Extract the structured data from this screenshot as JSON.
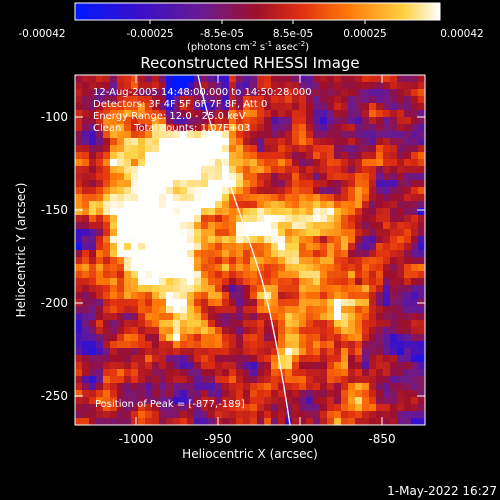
{
  "colorbar": {
    "tick_labels": [
      "-0.00042",
      "-0.00025",
      "-8.5e-05",
      "8.5e-05",
      "0.00025",
      "0.00042"
    ],
    "unit_main": "(photons cm",
    "unit_exp1": "-2",
    "unit_mid": " s",
    "unit_exp2": "-1",
    "unit_tail": " asec",
    "unit_exp3": "-2",
    "unit_close": ")",
    "stops": [
      "#0018ff",
      "#3a10c8",
      "#6a1a90",
      "#a0102a",
      "#e03010",
      "#ff7a08",
      "#ffd040",
      "#ffffff"
    ]
  },
  "title": "Reconstructed RHESSI Image",
  "info": {
    "line1": "12-Aug-2005 14:48:00.000 to 14:50:28.000",
    "line2": "Detectors: 3F 4F 5F 6F 7F 8F, Att 0",
    "line3": "Energy Range: 12.0 - 25.0 keV",
    "line4": "Clean    Total counts: 1.07E+03"
  },
  "peak_label": "Position of Peak = [-877,-189]",
  "x_axis": {
    "label": "Heliocentric X (arcsec)",
    "ticks": [
      "-1000",
      "-950",
      "-900",
      "-850"
    ],
    "range": [
      -1025,
      -835
    ]
  },
  "y_axis": {
    "label": "Heliocentric Y (arcsec)",
    "ticks": [
      "-100",
      "-150",
      "-200",
      "-250"
    ],
    "range": [
      -265,
      -75
    ]
  },
  "timestamp": "1-May-2022 16:27"
}
